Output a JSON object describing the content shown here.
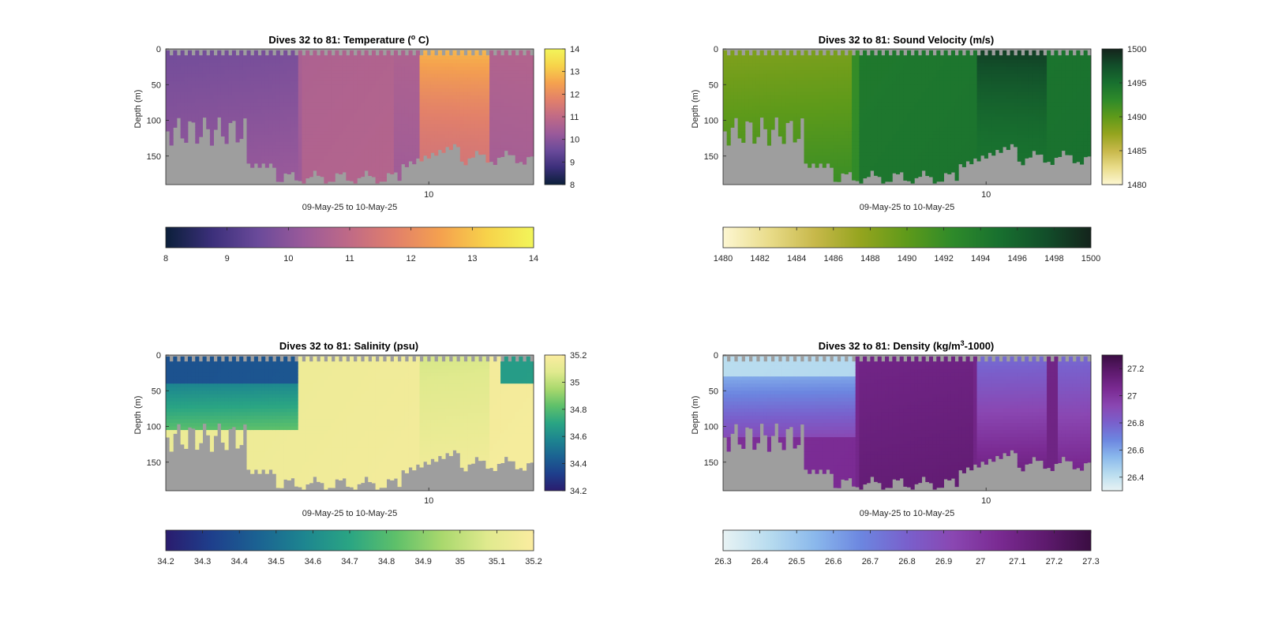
{
  "chart_data": [
    {
      "type": "heatmap",
      "title_prefix": "Dives 32 to 81: Temperature (",
      "title_sup": "o",
      "title_suffix": " C)",
      "xlabel": "09-May-25 to 10-May-25",
      "ylabel": "Depth (m)",
      "xticks": [
        "10"
      ],
      "yticks": [
        0,
        50,
        100,
        150
      ],
      "ylim": [
        0,
        190
      ],
      "colorbar_range": [
        8,
        14
      ],
      "colorbar_ticks": [
        8,
        9,
        10,
        11,
        12,
        13,
        14
      ],
      "bottom_colorbar_ticks": [
        8,
        9,
        10,
        11,
        12,
        13,
        14
      ],
      "colormap": [
        "#0b1f3a",
        "#3b2f7a",
        "#6a4a9a",
        "#9a5a9a",
        "#c06a86",
        "#e2806a",
        "#f5a24e",
        "#f7d34a",
        "#f2f55a"
      ],
      "field": "temperature"
    },
    {
      "type": "heatmap",
      "title_prefix": "Dives 32 to 81: Sound Velocity (m/s)",
      "title_sup": "",
      "title_suffix": "",
      "xlabel": "09-May-25 to 10-May-25",
      "ylabel": "Depth (m)",
      "xticks": [
        "10"
      ],
      "yticks": [
        0,
        50,
        100,
        150
      ],
      "ylim": [
        0,
        190
      ],
      "colorbar_range": [
        1480,
        1500
      ],
      "colorbar_ticks": [
        1480,
        1485,
        1490,
        1495,
        1500
      ],
      "bottom_colorbar_ticks": [
        1480,
        1482,
        1484,
        1486,
        1488,
        1490,
        1492,
        1494,
        1496,
        1498,
        1500
      ],
      "colormap": [
        "#fdf7d2",
        "#e9dc8a",
        "#c7b84a",
        "#94a41e",
        "#5e9a1a",
        "#2e8a2a",
        "#18702f",
        "#124f2a",
        "#14241c"
      ],
      "field": "soundvelocity"
    },
    {
      "type": "heatmap",
      "title_prefix": "Dives 32 to 81: Salinity (psu)",
      "title_sup": "",
      "title_suffix": "",
      "xlabel": "09-May-25 to 10-May-25",
      "ylabel": "Depth (m)",
      "xticks": [
        "10"
      ],
      "yticks": [
        0,
        50,
        100,
        150
      ],
      "ylim": [
        0,
        190
      ],
      "colorbar_range": [
        34.2,
        35.2
      ],
      "colorbar_ticks": [
        34.2,
        34.4,
        34.6,
        34.8,
        35,
        35.2
      ],
      "bottom_colorbar_ticks": [
        34.2,
        34.3,
        34.4,
        34.5,
        34.6,
        34.7,
        34.8,
        34.9,
        35,
        35.1,
        35.2
      ],
      "colormap": [
        "#2a1c6e",
        "#1e3f8c",
        "#1b6292",
        "#1d8590",
        "#2aa583",
        "#5ec06a",
        "#a9d86d",
        "#e0ea8e",
        "#fbeca0"
      ],
      "field": "salinity"
    },
    {
      "type": "heatmap",
      "title_prefix": "Dives 32 to 81: Density (kg/m",
      "title_sup": "3",
      "title_suffix": "-1000)",
      "xlabel": "09-May-25 to 10-May-25",
      "ylabel": "Depth (m)",
      "xticks": [
        "10"
      ],
      "yticks": [
        0,
        50,
        100,
        150
      ],
      "ylim": [
        0,
        190
      ],
      "colorbar_range": [
        26.3,
        27.3
      ],
      "colorbar_ticks": [
        26.4,
        26.6,
        26.8,
        27,
        27.2
      ],
      "bottom_colorbar_ticks": [
        26.3,
        26.4,
        26.5,
        26.6,
        26.7,
        26.8,
        26.9,
        27,
        27.1,
        27.2,
        27.3
      ],
      "colormap": [
        "#e8f3f4",
        "#b8dcef",
        "#8ab8ec",
        "#6c86e0",
        "#7960cc",
        "#8a47b2",
        "#7a2a92",
        "#5e1a6e",
        "#3a0d42"
      ],
      "field": "density"
    }
  ],
  "nan_color": "#9e9e9e"
}
